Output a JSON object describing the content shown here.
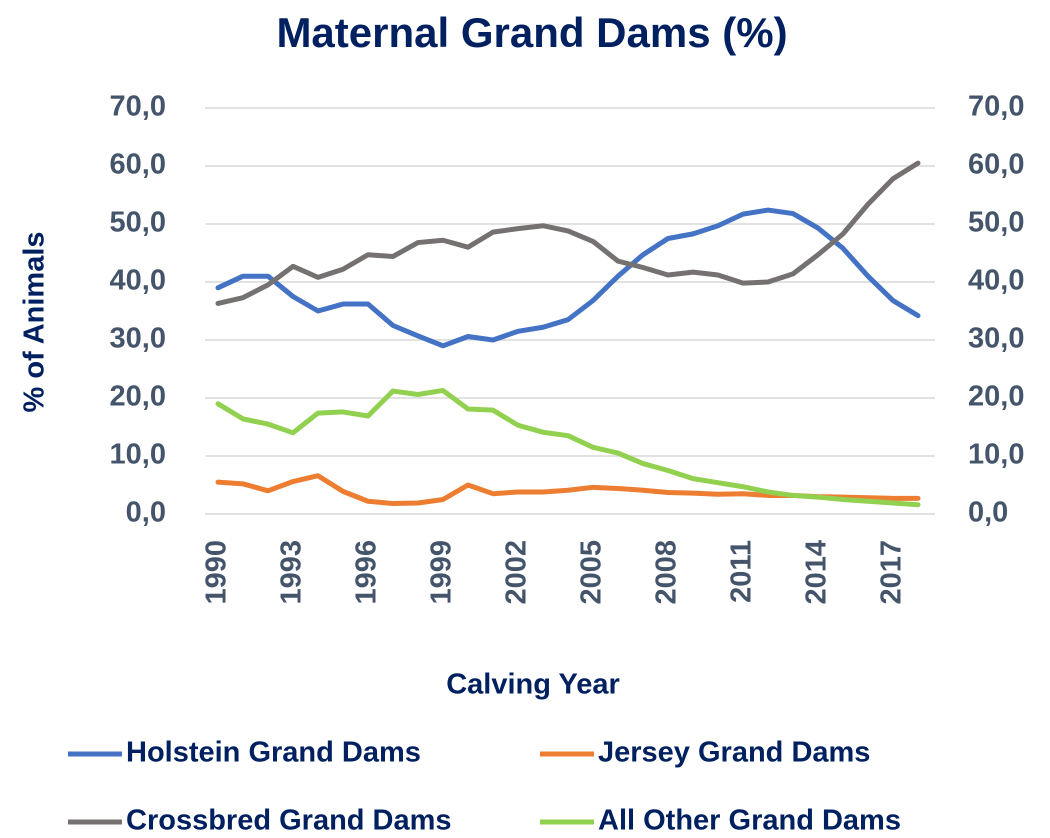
{
  "chart_data": {
    "type": "line",
    "title": "Maternal Grand Dams (%)",
    "x_label": "Calving Year",
    "y_label": "% of Animals",
    "x": [
      1990,
      1991,
      1992,
      1993,
      1994,
      1995,
      1996,
      1997,
      1998,
      1999,
      2000,
      2001,
      2002,
      2003,
      2004,
      2005,
      2006,
      2007,
      2008,
      2009,
      2010,
      2011,
      2012,
      2013,
      2014,
      2015,
      2016,
      2017,
      2018
    ],
    "xlim": [
      1990,
      2018
    ],
    "xticks": [
      1990,
      1993,
      1996,
      1999,
      2002,
      2005,
      2008,
      2011,
      2014,
      2017
    ],
    "ylim": [
      0,
      70
    ],
    "yticks": [
      {
        "value": 0,
        "label": "0,0"
      },
      {
        "value": 10,
        "label": "10,0"
      },
      {
        "value": 20,
        "label": "20,0"
      },
      {
        "value": 30,
        "label": "30,0"
      },
      {
        "value": 40,
        "label": "40,0"
      },
      {
        "value": 50,
        "label": "50,0"
      },
      {
        "value": 60,
        "label": "60,0"
      },
      {
        "value": 70,
        "label": "70,0"
      }
    ],
    "y2lim": [
      0,
      70
    ],
    "y2ticks": [
      {
        "value": 0,
        "label": "0,0"
      },
      {
        "value": 10,
        "label": "10,0"
      },
      {
        "value": 20,
        "label": "20,0"
      },
      {
        "value": 30,
        "label": "30,0"
      },
      {
        "value": 40,
        "label": "40,0"
      },
      {
        "value": 50,
        "label": "50,0"
      },
      {
        "value": 60,
        "label": "60,0"
      },
      {
        "value": 70,
        "label": "70,0"
      }
    ],
    "grid": true,
    "legend": "bottom",
    "series": [
      {
        "name": "Holstein Grand Dams",
        "color": "#4472c4",
        "values": [
          39.0,
          41.0,
          41.0,
          37.5,
          35.0,
          36.2,
          36.2,
          32.5,
          30.7,
          29.0,
          30.6,
          30.0,
          31.5,
          32.2,
          33.5,
          36.8,
          41.0,
          44.7,
          47.5,
          48.3,
          49.7,
          51.7,
          52.4,
          51.8,
          49.3,
          45.8,
          41.0,
          36.8,
          34.2
        ]
      },
      {
        "name": "Jersey Grand Dams",
        "color": "#ed7d31",
        "values": [
          5.5,
          5.2,
          4.0,
          5.6,
          6.6,
          3.9,
          2.2,
          1.8,
          1.9,
          2.5,
          5.0,
          3.5,
          3.8,
          3.8,
          4.1,
          4.6,
          4.4,
          4.1,
          3.7,
          3.6,
          3.4,
          3.5,
          3.2,
          3.2,
          3.0,
          2.9,
          2.8,
          2.7,
          2.7
        ]
      },
      {
        "name": "Crossbred Grand Dams",
        "color": "#767171",
        "values": [
          36.3,
          37.3,
          39.5,
          42.7,
          40.8,
          42.2,
          44.7,
          44.4,
          46.8,
          47.2,
          46.0,
          48.6,
          49.2,
          49.7,
          48.8,
          47.0,
          43.6,
          42.5,
          41.2,
          41.7,
          41.2,
          39.8,
          40.0,
          41.4,
          44.7,
          48.3,
          53.4,
          57.8,
          60.5
        ]
      },
      {
        "name": "All Other Grand Dams",
        "color": "#92d050",
        "values": [
          19.0,
          16.4,
          15.5,
          14.0,
          17.4,
          17.6,
          16.9,
          21.2,
          20.6,
          21.3,
          18.1,
          17.9,
          15.3,
          14.1,
          13.5,
          11.5,
          10.5,
          8.7,
          7.5,
          6.1,
          5.4,
          4.7,
          3.8,
          3.2,
          2.9,
          2.5,
          2.2,
          1.9,
          1.6
        ]
      }
    ]
  }
}
